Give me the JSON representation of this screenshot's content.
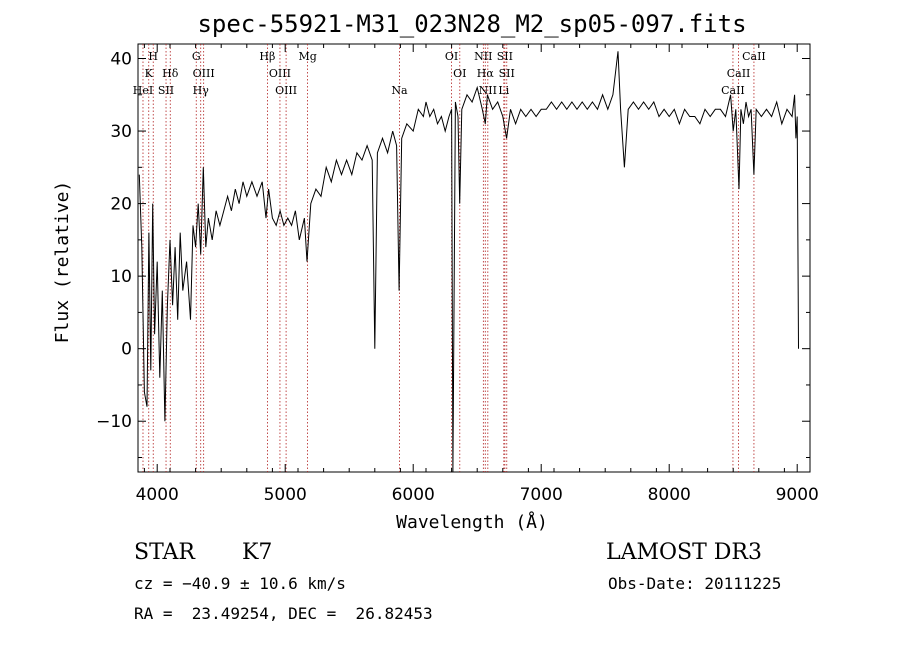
{
  "chart_data": {
    "type": "line",
    "title": "spec-55921-M31_023N28_M2_sp05-097.fits",
    "xlabel": "Wavelength (Å)",
    "ylabel": "Flux (relative)",
    "xlim": [
      3850,
      9100
    ],
    "ylim": [
      -17,
      42
    ],
    "xticks": [
      4000,
      5000,
      6000,
      7000,
      8000,
      9000
    ],
    "yticks": [
      -10,
      0,
      10,
      20,
      30,
      40
    ],
    "xtick_labels": [
      "4000",
      "5000",
      "6000",
      "7000",
      "8000",
      "9000"
    ],
    "ytick_labels": [
      "−10",
      "0",
      "10",
      "20",
      "30",
      "40"
    ],
    "series": [
      {
        "name": "spectrum",
        "points": [
          [
            3860,
            24
          ],
          [
            3880,
            14
          ],
          [
            3900,
            -6
          ],
          [
            3920,
            -8
          ],
          [
            3935,
            16
          ],
          [
            3950,
            -3
          ],
          [
            3965,
            20
          ],
          [
            3980,
            2
          ],
          [
            4000,
            12
          ],
          [
            4020,
            -4
          ],
          [
            4040,
            8
          ],
          [
            4060,
            -10
          ],
          [
            4080,
            6
          ],
          [
            4100,
            15
          ],
          [
            4120,
            6
          ],
          [
            4140,
            14
          ],
          [
            4160,
            4
          ],
          [
            4180,
            16
          ],
          [
            4200,
            8
          ],
          [
            4230,
            12
          ],
          [
            4260,
            4
          ],
          [
            4280,
            17
          ],
          [
            4300,
            14
          ],
          [
            4320,
            20
          ],
          [
            4340,
            13
          ],
          [
            4360,
            25
          ],
          [
            4380,
            14
          ],
          [
            4400,
            18
          ],
          [
            4430,
            15
          ],
          [
            4460,
            19
          ],
          [
            4490,
            17
          ],
          [
            4520,
            19
          ],
          [
            4550,
            21
          ],
          [
            4580,
            19
          ],
          [
            4610,
            22
          ],
          [
            4640,
            20
          ],
          [
            4670,
            23
          ],
          [
            4700,
            21
          ],
          [
            4740,
            23
          ],
          [
            4780,
            21
          ],
          [
            4820,
            23
          ],
          [
            4850,
            18
          ],
          [
            4870,
            22
          ],
          [
            4900,
            18
          ],
          [
            4930,
            17
          ],
          [
            4960,
            19
          ],
          [
            4990,
            17
          ],
          [
            5020,
            18
          ],
          [
            5050,
            17
          ],
          [
            5080,
            19
          ],
          [
            5110,
            15
          ],
          [
            5150,
            18
          ],
          [
            5170,
            12
          ],
          [
            5200,
            20
          ],
          [
            5240,
            22
          ],
          [
            5280,
            21
          ],
          [
            5320,
            25
          ],
          [
            5360,
            23
          ],
          [
            5400,
            26
          ],
          [
            5440,
            24
          ],
          [
            5480,
            26
          ],
          [
            5520,
            24
          ],
          [
            5560,
            27
          ],
          [
            5600,
            26
          ],
          [
            5640,
            28
          ],
          [
            5680,
            26
          ],
          [
            5700,
            0
          ],
          [
            5720,
            27
          ],
          [
            5760,
            29
          ],
          [
            5800,
            27
          ],
          [
            5840,
            30
          ],
          [
            5870,
            28
          ],
          [
            5890,
            8
          ],
          [
            5910,
            29
          ],
          [
            5950,
            31
          ],
          [
            6000,
            30
          ],
          [
            6040,
            33
          ],
          [
            6080,
            32
          ],
          [
            6100,
            34
          ],
          [
            6130,
            32
          ],
          [
            6160,
            33
          ],
          [
            6190,
            31
          ],
          [
            6220,
            32
          ],
          [
            6250,
            30
          ],
          [
            6280,
            32
          ],
          [
            6300,
            33
          ],
          [
            6310,
            -17
          ],
          [
            6330,
            34
          ],
          [
            6350,
            32
          ],
          [
            6363,
            20
          ],
          [
            6380,
            33
          ],
          [
            6420,
            35
          ],
          [
            6460,
            34
          ],
          [
            6500,
            36
          ],
          [
            6540,
            33
          ],
          [
            6563,
            31
          ],
          [
            6580,
            35
          ],
          [
            6620,
            33
          ],
          [
            6660,
            34
          ],
          [
            6700,
            32
          ],
          [
            6730,
            29
          ],
          [
            6760,
            33
          ],
          [
            6800,
            31
          ],
          [
            6840,
            33
          ],
          [
            6880,
            32
          ],
          [
            6920,
            33
          ],
          [
            6960,
            32
          ],
          [
            7000,
            33
          ],
          [
            7040,
            33
          ],
          [
            7080,
            34
          ],
          [
            7120,
            33
          ],
          [
            7160,
            34
          ],
          [
            7200,
            33
          ],
          [
            7240,
            34
          ],
          [
            7280,
            33
          ],
          [
            7320,
            34
          ],
          [
            7360,
            33
          ],
          [
            7400,
            34
          ],
          [
            7440,
            33
          ],
          [
            7480,
            35
          ],
          [
            7520,
            33
          ],
          [
            7560,
            35
          ],
          [
            7600,
            41
          ],
          [
            7620,
            33
          ],
          [
            7650,
            25
          ],
          [
            7680,
            33
          ],
          [
            7720,
            34
          ],
          [
            7760,
            33
          ],
          [
            7800,
            34
          ],
          [
            7840,
            33
          ],
          [
            7880,
            34
          ],
          [
            7920,
            32
          ],
          [
            7960,
            33
          ],
          [
            8000,
            32
          ],
          [
            8040,
            33
          ],
          [
            8080,
            31
          ],
          [
            8120,
            33
          ],
          [
            8160,
            32
          ],
          [
            8200,
            32
          ],
          [
            8240,
            31
          ],
          [
            8280,
            33
          ],
          [
            8320,
            32
          ],
          [
            8360,
            33
          ],
          [
            8400,
            33
          ],
          [
            8440,
            32
          ],
          [
            8480,
            35
          ],
          [
            8500,
            30
          ],
          [
            8520,
            33
          ],
          [
            8545,
            22
          ],
          [
            8560,
            33
          ],
          [
            8580,
            31
          ],
          [
            8600,
            34
          ],
          [
            8620,
            32
          ],
          [
            8640,
            33
          ],
          [
            8662,
            24
          ],
          [
            8680,
            33
          ],
          [
            8720,
            32
          ],
          [
            8760,
            33
          ],
          [
            8800,
            32
          ],
          [
            8840,
            34
          ],
          [
            8880,
            31
          ],
          [
            8920,
            33
          ],
          [
            8960,
            32
          ],
          [
            8980,
            35
          ],
          [
            8990,
            29
          ],
          [
            9000,
            32
          ],
          [
            9010,
            0
          ]
        ]
      }
    ],
    "spectral_lines": [
      {
        "label": "K",
        "x": 3934,
        "row": 2
      },
      {
        "label": "H",
        "x": 3969,
        "row": 1
      },
      {
        "label": "HeI",
        "x": 3889,
        "row": 3
      },
      {
        "label": "SII",
        "x": 4069,
        "row": 3
      },
      {
        "label": "Hδ",
        "x": 4102,
        "row": 2
      },
      {
        "label": "G",
        "x": 4305,
        "row": 1
      },
      {
        "label": "OIII",
        "x": 4363,
        "row": 2
      },
      {
        "label": "Hγ",
        "x": 4340,
        "row": 3
      },
      {
        "label": "Hβ",
        "x": 4861,
        "row": 1
      },
      {
        "label": "OIII",
        "x": 4959,
        "row": 2
      },
      {
        "label": "OIII",
        "x": 5007,
        "row": 3
      },
      {
        "label": "Mg",
        "x": 5175,
        "row": 1
      },
      {
        "label": "Na",
        "x": 5893,
        "row": 3
      },
      {
        "label": "OI",
        "x": 6300,
        "row": 1
      },
      {
        "label": "OI",
        "x": 6364,
        "row": 2
      },
      {
        "label": "NII",
        "x": 6548,
        "row": 1
      },
      {
        "label": "Hα",
        "x": 6563,
        "row": 2
      },
      {
        "label": "NII",
        "x": 6583,
        "row": 3
      },
      {
        "label": "SII",
        "x": 6716,
        "row": 1
      },
      {
        "label": "SII",
        "x": 6731,
        "row": 2
      },
      {
        "label": "Li",
        "x": 6708,
        "row": 3
      },
      {
        "label": "CaII",
        "x": 8498,
        "row": 3
      },
      {
        "label": "CaII",
        "x": 8542,
        "row": 2
      },
      {
        "label": "CaII",
        "x": 8662,
        "row": 1
      }
    ],
    "line_color": "#b22222",
    "curve_color": "#000000"
  },
  "info": {
    "class_label": "STAR",
    "subclass": "K7",
    "cz": "cz = −40.9 ± 10.6 km/s",
    "coords": "RA =  23.49254, DEC =  26.82453",
    "survey": "LAMOST DR3",
    "obs_date": "Obs-Date: 20111225"
  }
}
